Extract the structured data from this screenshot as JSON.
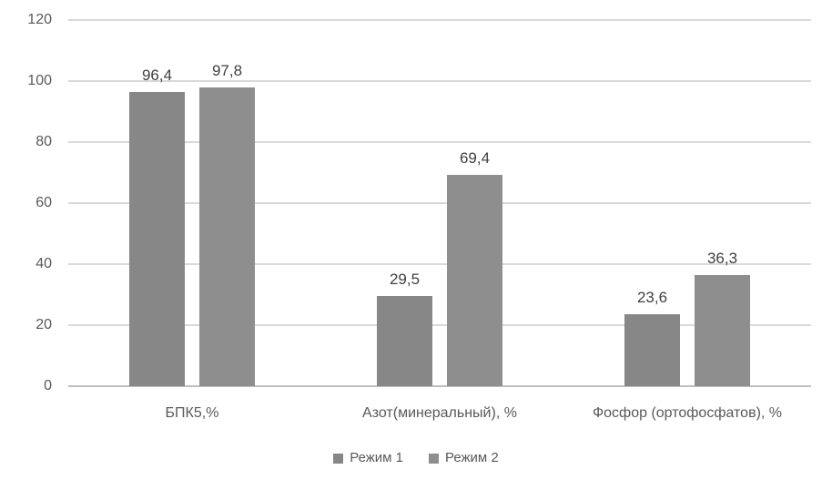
{
  "chart_data": {
    "type": "bar",
    "title": "",
    "xlabel": "",
    "ylabel": "",
    "categories": [
      "БПК5,%",
      "Азот(минеральный), %",
      "Фосфор (ортофосфатов), %"
    ],
    "series": [
      {
        "name": "Режим 1",
        "values": [
          96.4,
          29.5,
          23.6
        ],
        "color": "#878787"
      },
      {
        "name": "Режим 2",
        "values": [
          97.8,
          69.4,
          36.3
        ],
        "color": "#8e8e8e"
      }
    ],
    "data_labels": [
      [
        "96,4",
        "29,5",
        "23,6"
      ],
      [
        "97,8",
        "69,4",
        "36,3"
      ]
    ],
    "y_ticks": [
      0,
      20,
      40,
      60,
      80,
      100,
      120
    ],
    "ylim": [
      0,
      120
    ],
    "grid": true,
    "legend_position": "bottom",
    "colors": {
      "gridline": "#d9d9d9",
      "axis_line": "#bfbfbf",
      "tick_text": "#595959",
      "data_label_text": "#404040",
      "legend_text": "#595959",
      "background": "#ffffff"
    }
  }
}
